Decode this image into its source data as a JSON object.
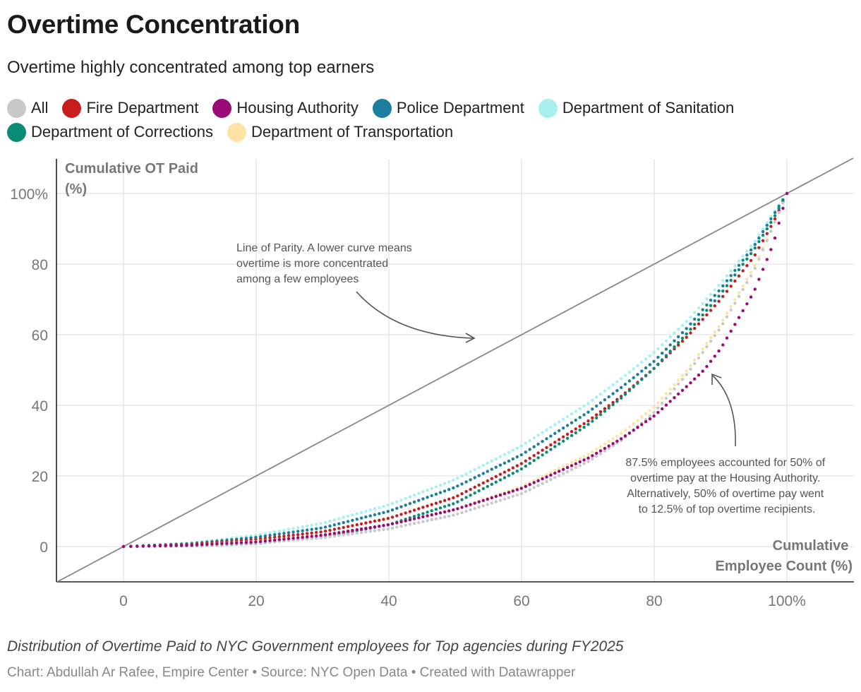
{
  "title": "Overtime Concentration",
  "subtitle": "Overtime highly concentrated among top earners",
  "footer_note": "Distribution of Overtime Paid to NYC Government employees for Top agencies during FY2025",
  "credit": "Chart: Abdullah Ar Rafee, Empire Center • Source: NYC Open Data • Created with Datawrapper",
  "chart_data": {
    "type": "scatter",
    "title": "Overtime Concentration",
    "subtitle": "Overtime highly concentrated among top earners",
    "xlabel": "Cumulative Employee Count (%)",
    "ylabel": "Cumulative OT Paid (%)",
    "xlim": [
      -10,
      110
    ],
    "ylim": [
      -10,
      110
    ],
    "x_ticks": [
      0,
      20,
      40,
      60,
      80,
      100
    ],
    "x_tick_labels": [
      "0",
      "20",
      "40",
      "60",
      "80",
      "100%"
    ],
    "y_ticks": [
      0,
      20,
      40,
      60,
      80,
      100
    ],
    "y_tick_labels": [
      "0",
      "20",
      "40",
      "60",
      "80",
      "100%"
    ],
    "grid": true,
    "legend_position": "top",
    "reference_line": {
      "label": "Line of Parity",
      "x": [
        -10,
        110
      ],
      "y": [
        -10,
        110
      ],
      "color": "#888888"
    },
    "series": [
      {
        "name": "All",
        "color": "#c8c8c8",
        "x": [
          0,
          10,
          20,
          30,
          40,
          50,
          60,
          70,
          75,
          80,
          85,
          90,
          95,
          98,
          100
        ],
        "y": [
          0,
          0.3,
          1.0,
          2.5,
          5.0,
          9.0,
          15.0,
          24.0,
          30.0,
          38.0,
          49.0,
          62.0,
          78.0,
          91.0,
          100
        ]
      },
      {
        "name": "Fire Department",
        "color": "#c71e1d",
        "x": [
          0,
          10,
          20,
          30,
          40,
          50,
          60,
          70,
          75,
          80,
          85,
          90,
          95,
          98,
          100
        ],
        "y": [
          0,
          0.6,
          2.0,
          4.2,
          8.0,
          14.0,
          23.5,
          35.5,
          42.5,
          50.5,
          59.5,
          70.0,
          82.0,
          92.0,
          100
        ]
      },
      {
        "name": "Housing Authority",
        "color": "#9b0a78",
        "x": [
          0,
          10,
          20,
          30,
          40,
          50,
          60,
          70,
          75,
          80,
          85,
          87.5,
          90,
          95,
          98,
          100
        ],
        "y": [
          0,
          0.4,
          1.3,
          3.2,
          6.2,
          10.5,
          16.5,
          25.0,
          30.5,
          37.0,
          45.5,
          50.0,
          56.0,
          72.0,
          86.0,
          100
        ]
      },
      {
        "name": "Police Department",
        "color": "#1d7ea0",
        "x": [
          0,
          10,
          20,
          30,
          40,
          50,
          60,
          70,
          75,
          80,
          85,
          90,
          95,
          98,
          100
        ],
        "y": [
          0,
          0.8,
          2.6,
          5.3,
          10.0,
          16.8,
          26.0,
          38.0,
          45.0,
          52.5,
          62.0,
          73.0,
          85.0,
          94.0,
          100
        ]
      },
      {
        "name": "Department of Sanitation",
        "color": "#a8f0f0",
        "x": [
          0,
          10,
          20,
          30,
          40,
          50,
          60,
          70,
          75,
          80,
          85,
          90,
          95,
          98,
          100
        ],
        "y": [
          0,
          1.0,
          3.2,
          6.6,
          11.8,
          19.0,
          28.5,
          40.5,
          47.5,
          55.0,
          64.0,
          74.5,
          86.0,
          94.5,
          100
        ]
      },
      {
        "name": "Department of Corrections",
        "color": "#0a8b76",
        "x": [
          0,
          10,
          20,
          30,
          40,
          50,
          60,
          70,
          75,
          80,
          85,
          90,
          95,
          98,
          100
        ],
        "y": [
          0,
          0.2,
          0.9,
          2.6,
          6.2,
          12.3,
          22.0,
          34.5,
          42.0,
          50.5,
          60.5,
          71.5,
          84.0,
          93.0,
          100
        ]
      },
      {
        "name": "Department of Transportation",
        "color": "#fde4a5",
        "x": [
          0,
          10,
          20,
          30,
          40,
          50,
          60,
          70,
          75,
          80,
          85,
          90,
          95,
          98,
          100
        ],
        "y": [
          0,
          0.4,
          1.4,
          3.2,
          6.2,
          10.5,
          17.0,
          26.0,
          32.0,
          39.5,
          50.0,
          63.0,
          79.0,
          91.0,
          100
        ]
      }
    ],
    "annotations": [
      {
        "lines": [
          "Line of Parity. A lower curve means",
          "overtime is more concentrated",
          "among a few employees"
        ]
      },
      {
        "lines": [
          "87.5% employees accounted for 50% of",
          "overtime pay at the Housing Authority.",
          "Alternatively, 50% of overtime pay went",
          "to 12.5% of top overtime recipients."
        ]
      }
    ]
  }
}
